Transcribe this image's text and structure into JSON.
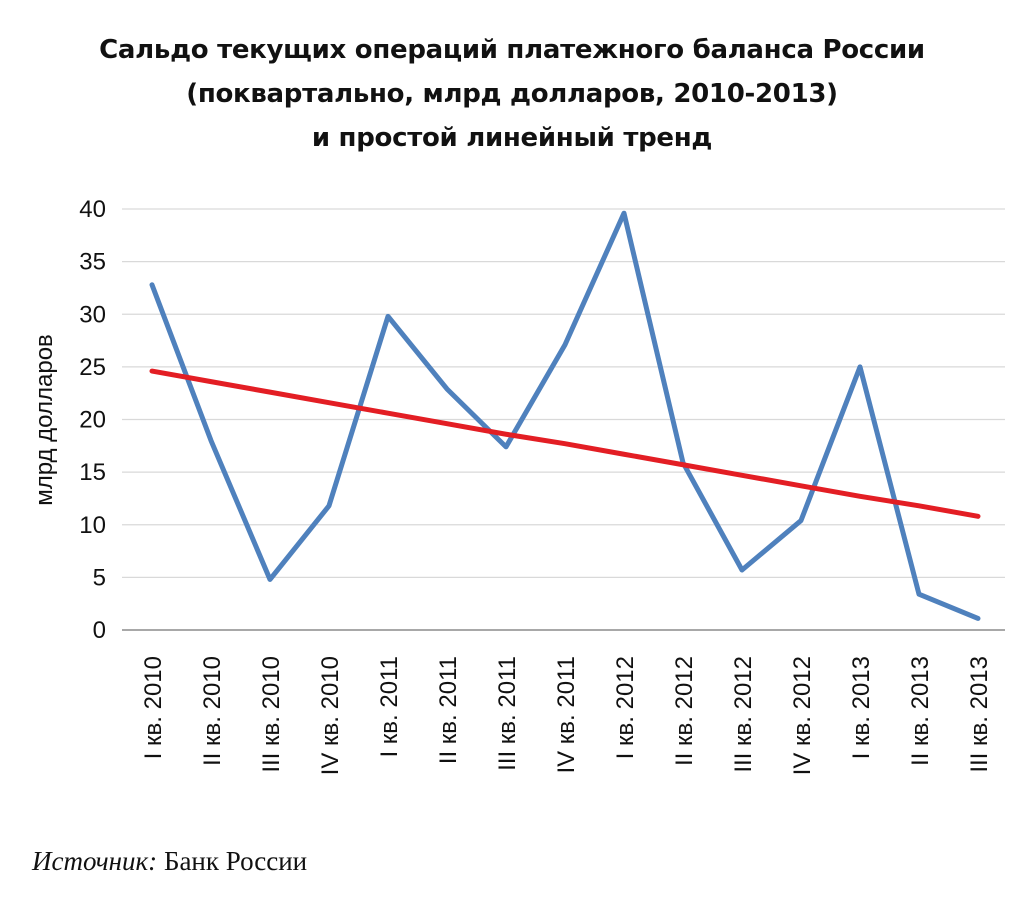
{
  "chart_data": {
    "type": "line",
    "title_lines": [
      "Сальдо текущих операций платежного баланса России",
      "(поквартально, млрд долларов, 2010-2013)",
      "и простой линейный тренд"
    ],
    "xlabel": "",
    "ylabel": "млрд долларов",
    "ylim": [
      0,
      40
    ],
    "yticks": [
      0,
      5,
      10,
      15,
      20,
      25,
      30,
      35,
      40
    ],
    "grid": true,
    "categories": [
      "I кв. 2010",
      "II кв. 2010",
      "III кв. 2010",
      "IV кв. 2010",
      "I кв. 2011",
      "II кв. 2011",
      "III кв. 2011",
      "IV кв. 2011",
      "I кв. 2012",
      "II кв. 2012",
      "III кв. 2012",
      "IV кв. 2012",
      "I кв. 2013",
      "II кв. 2013",
      "III кв. 2013"
    ],
    "series": [
      {
        "values": [
          32.8,
          18.0,
          4.8,
          11.8,
          29.8,
          22.9,
          17.4,
          27.1,
          39.6,
          15.9,
          5.7,
          10.4,
          25.0,
          3.4,
          1.1
        ],
        "color": "#4f81bd"
      },
      {
        "values": [
          24.6,
          23.6,
          22.6,
          21.6,
          20.6,
          19.6,
          18.6,
          17.7,
          16.7,
          15.7,
          14.7,
          13.7,
          12.7,
          11.8,
          10.8
        ],
        "color": "#e31e24"
      }
    ]
  },
  "source": {
    "label": "Источник:",
    "text": " Банк России"
  }
}
